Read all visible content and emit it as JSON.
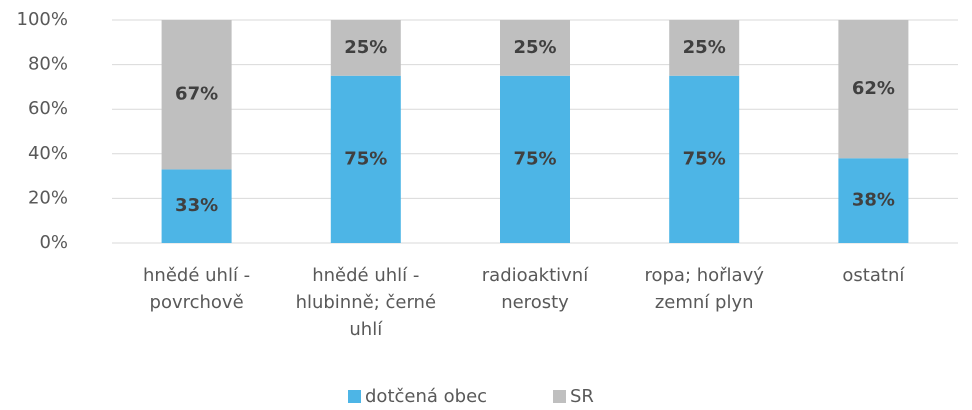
{
  "chart_data": {
    "type": "stacked_bar_100",
    "categories": [
      "hnědé uhlí - povrchově",
      "hnědé uhlí - hlubinně; černé uhlí",
      "radioaktivní nerosty",
      "ropa; hořlavý zemní plyn",
      "ostatní"
    ],
    "series": [
      {
        "name": "dotčená obec",
        "color": "#4db5e6",
        "values": [
          33,
          75,
          75,
          75,
          38
        ],
        "value_labels": [
          "33%",
          "75%",
          "75%",
          "75%",
          "38%"
        ]
      },
      {
        "name": "SR",
        "color": "#bfbfbf",
        "values": [
          67,
          25,
          25,
          25,
          62
        ],
        "value_labels": [
          "67%",
          "25%",
          "25%",
          "25%",
          "62%"
        ]
      }
    ],
    "ylim": [
      0,
      100
    ],
    "yticks": [
      {
        "value": 0,
        "label": "0%"
      },
      {
        "value": 20,
        "label": "20%"
      },
      {
        "value": 40,
        "label": "40%"
      },
      {
        "value": 60,
        "label": "60%"
      },
      {
        "value": 80,
        "label": "80%"
      },
      {
        "value": 100,
        "label": "100%"
      }
    ],
    "grid": true,
    "legend": "bottom"
  }
}
